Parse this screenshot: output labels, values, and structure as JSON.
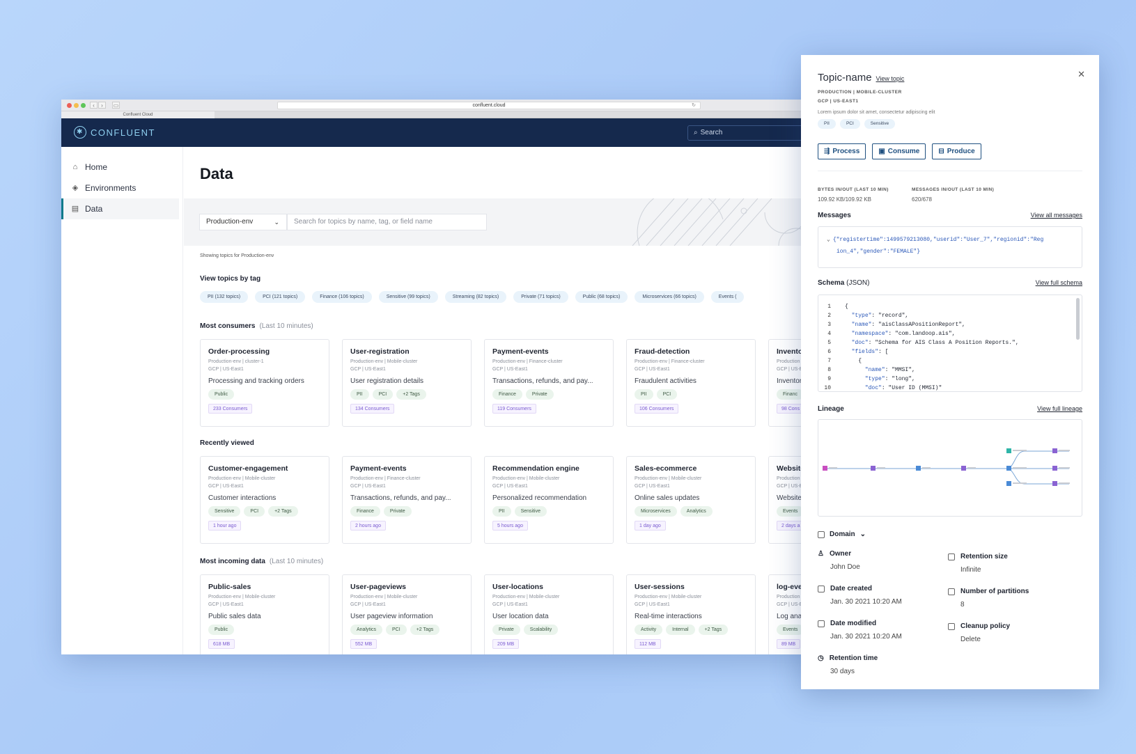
{
  "browser": {
    "url": "confluent.cloud",
    "tab_title": "Confluent Cloud"
  },
  "header": {
    "logo_text": "CONFLUENT",
    "search_placeholder": "Search"
  },
  "sidebar": {
    "items": [
      {
        "label": "Home",
        "icon": "home-icon"
      },
      {
        "label": "Environments",
        "icon": "layers-icon"
      },
      {
        "label": "Data",
        "icon": "document-icon",
        "active": true
      }
    ]
  },
  "main": {
    "title": "Data",
    "env_select": "Production-env",
    "search_placeholder": "Search for topics by name, tag, or field name",
    "showing_text": "Showing topics for Production-env",
    "tags_heading": "View topics by tag",
    "tags": [
      "PII (132 topics)",
      "PCI (121 topics)",
      "Finance (106 topics)",
      "Sensitive (99 topics)",
      "Streaming (82 topics)",
      "Private (71 topics)",
      "Public (68 topics)",
      "Microservices (66 topics)",
      "Events ("
    ],
    "sections": [
      {
        "title": "Most consumers",
        "subtitle": "(Last 10 minutes)",
        "cards": [
          {
            "name": "Order-processing",
            "meta1": "Production-env | cluster-1",
            "meta2": "GCP | US-East1",
            "desc": "Processing and tracking orders",
            "tags": [
              "Public"
            ],
            "badge": "233 Consumers"
          },
          {
            "name": "User-registration",
            "meta1": "Production-env | Mobile-cluster",
            "meta2": "GCP | US-East1",
            "desc": "User registration details",
            "tags": [
              "PII",
              "PCI",
              "+2 Tags"
            ],
            "badge": "134 Consumers"
          },
          {
            "name": "Payment-events",
            "meta1": "Production-env | Finance-cluster",
            "meta2": "GCP | US-East1",
            "desc": "Transactions, refunds, and pay...",
            "tags": [
              "Finance",
              "Private"
            ],
            "badge": "119 Consumers"
          },
          {
            "name": "Fraud-detection",
            "meta1": "Production-env | Finance-cluster",
            "meta2": "GCP | US-East1",
            "desc": "Fraudulent activities",
            "tags": [
              "PII",
              "PCI"
            ],
            "badge": "106 Consumers"
          },
          {
            "name": "Inventor",
            "meta1": "Production",
            "meta2": "GCP | US-E",
            "desc": "Inventor",
            "tags": [
              "Financ"
            ],
            "badge": "98 Cons"
          }
        ]
      },
      {
        "title": "Recently viewed",
        "subtitle": "",
        "cards": [
          {
            "name": "Customer-engagement",
            "meta1": "Production-env | Mobile-cluster",
            "meta2": "GCP | US-East1",
            "desc": "Customer interactions",
            "tags": [
              "Sensitive",
              "PCI",
              "+2 Tags"
            ],
            "badge": "1 hour ago"
          },
          {
            "name": "Payment-events",
            "meta1": "Production-env | Finance-cluster",
            "meta2": "GCP | US-East1",
            "desc": "Transactions, refunds, and pay...",
            "tags": [
              "Finance",
              "Private"
            ],
            "badge": "2 hours ago"
          },
          {
            "name": "Recommendation engine",
            "meta1": "Production-env | Mobile-cluster",
            "meta2": "GCP | US-East1",
            "desc": "Personalized recommendation",
            "tags": [
              "PII",
              "Sensitive"
            ],
            "badge": "5 hours ago"
          },
          {
            "name": "Sales-ecommerce",
            "meta1": "Production-env | Mobile-cluster",
            "meta2": "GCP | US-East1",
            "desc": "Online sales updates",
            "tags": [
              "Microservices",
              "Analytics"
            ],
            "badge": "1 day ago"
          },
          {
            "name": "Website",
            "meta1": "Production",
            "meta2": "GCP | US-E",
            "desc": "Website",
            "tags": [
              "Events"
            ],
            "badge": "2 days a"
          }
        ]
      },
      {
        "title": "Most incoming data",
        "subtitle": "(Last 10 minutes)",
        "cards": [
          {
            "name": "Public-sales",
            "meta1": "Production-env | Mobile-cluster",
            "meta2": "GCP | US-East1",
            "desc": "Public sales data",
            "tags": [
              "Public"
            ],
            "badge": "618 MB"
          },
          {
            "name": "User-pageviews",
            "meta1": "Production-env | Mobile-cluster",
            "meta2": "GCP | US-East1",
            "desc": "User pageview information",
            "tags": [
              "Analytics",
              "PCI",
              "+2 Tags"
            ],
            "badge": "552 MB"
          },
          {
            "name": "User-locations",
            "meta1": "Production-env | Mobile-cluster",
            "meta2": "GCP | US-East1",
            "desc": "User location data",
            "tags": [
              "Private",
              "Scalability"
            ],
            "badge": "209 MB"
          },
          {
            "name": "User-sessions",
            "meta1": "Production-env | Mobile-cluster",
            "meta2": "GCP | US-East1",
            "desc": "Real-time interactions",
            "tags": [
              "Activity",
              "Internal",
              "+2 Tags"
            ],
            "badge": "112 MB"
          },
          {
            "name": "log-even",
            "meta1": "Production",
            "meta2": "GCP | US-E",
            "desc": "Log anal",
            "tags": [
              "Events"
            ],
            "badge": "89 MB"
          }
        ]
      }
    ]
  },
  "panel": {
    "title": "Topic-name",
    "view_topic": "View topic",
    "meta1": "PRODUCTION | MOBILE-CLUSTER",
    "meta2": "GCP | US-EAST1",
    "description": "Lorem ipsum dolor sit amet, consectetur adipiscing elit",
    "tags": [
      "PII",
      "PCI",
      "Sensitive"
    ],
    "buttons": [
      "Process",
      "Consume",
      "Produce"
    ],
    "bytes_label": "BYTES IN/OUT (LAST 10 MIN)",
    "bytes_value": "109.92 KB/109.92 KB",
    "messages_label": "MESSAGES IN/OUT (LAST 10 MIN)",
    "messages_value": "620/678",
    "messages_heading": "Messages",
    "view_all_messages": "View all messages",
    "message_line1": "{\"registertime\":1499579213080,\"userid\":\"User_7\",\"regionid\":\"Reg",
    "message_line2": "ion_4\",\"gender\":\"FEMALE\"}",
    "schema_heading": "Schema",
    "schema_sub": "(JSON)",
    "view_full_schema": "View full schema",
    "schema_lines": [
      {
        "n": "1",
        "code": "{"
      },
      {
        "n": "2",
        "code": "  \"type\": \"record\","
      },
      {
        "n": "3",
        "code": "  \"name\": \"aisClassAPositionReport\","
      },
      {
        "n": "4",
        "code": "  \"namespace\": \"com.landoop.ais\","
      },
      {
        "n": "5",
        "code": "  \"doc\": \"Schema for AIS Class A Position Reports.\","
      },
      {
        "n": "6",
        "code": "  \"fields\": ["
      },
      {
        "n": "7",
        "code": "    {"
      },
      {
        "n": "8",
        "code": "      \"name\": \"MMSI\","
      },
      {
        "n": "9",
        "code": "      \"type\": \"long\","
      },
      {
        "n": "10",
        "code": "      \"doc\": \"User ID (MMSI)\""
      }
    ],
    "lineage_heading": "Lineage",
    "view_full_lineage": "View full lineage",
    "domain_label": "Domain",
    "props": {
      "owner_label": "Owner",
      "owner_value": "John Doe",
      "retention_size_label": "Retention size",
      "retention_size_value": "Infinite",
      "date_created_label": "Date created",
      "date_created_value": "Jan. 30 2021 10:20 AM",
      "partitions_label": "Number of partitions",
      "partitions_value": "8",
      "date_modified_label": "Date modified",
      "date_modified_value": "Jan. 30 2021 10:20 AM",
      "cleanup_label": "Cleanup policy",
      "cleanup_value": "Delete",
      "retention_time_label": "Retention time",
      "retention_time_value": "30 days"
    }
  },
  "colors": {
    "header_bg": "#15294d",
    "accent": "#1f5080",
    "tag_blue": "#e9f3fb",
    "tag_green": "#eaf4ec",
    "badge_purple": "#7a5bd0"
  }
}
